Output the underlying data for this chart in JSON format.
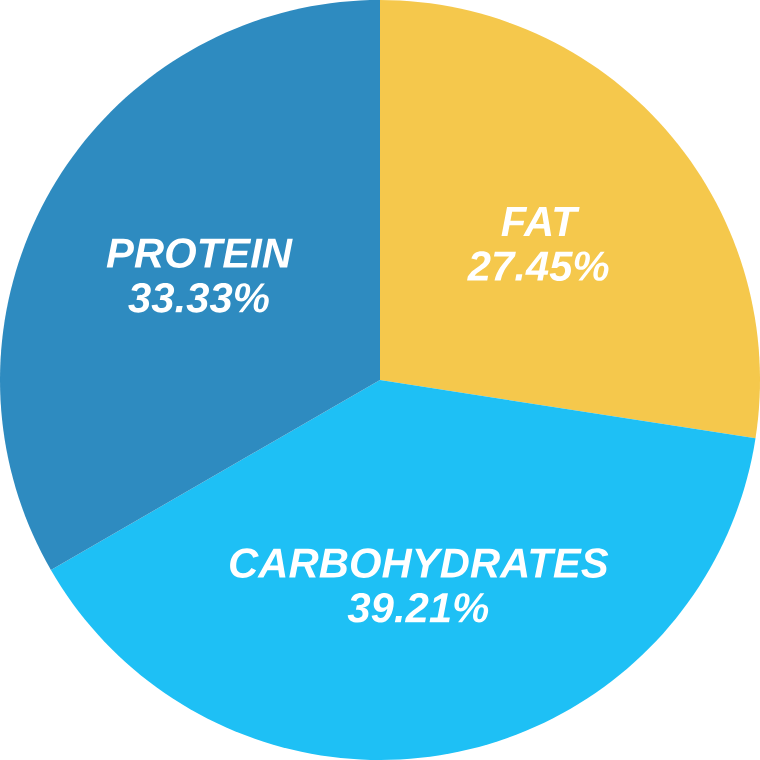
{
  "chart_data": {
    "type": "pie",
    "categories": [
      "FAT",
      "CARBOHYDRATES",
      "PROTEIN"
    ],
    "values": [
      27.45,
      39.21,
      33.33
    ],
    "colors": [
      "#f5c84c",
      "#1ec0f5",
      "#2e8bc0"
    ],
    "data_labels": true,
    "value_labels": [
      "27.45%",
      "39.21%",
      "33.33%"
    ]
  }
}
